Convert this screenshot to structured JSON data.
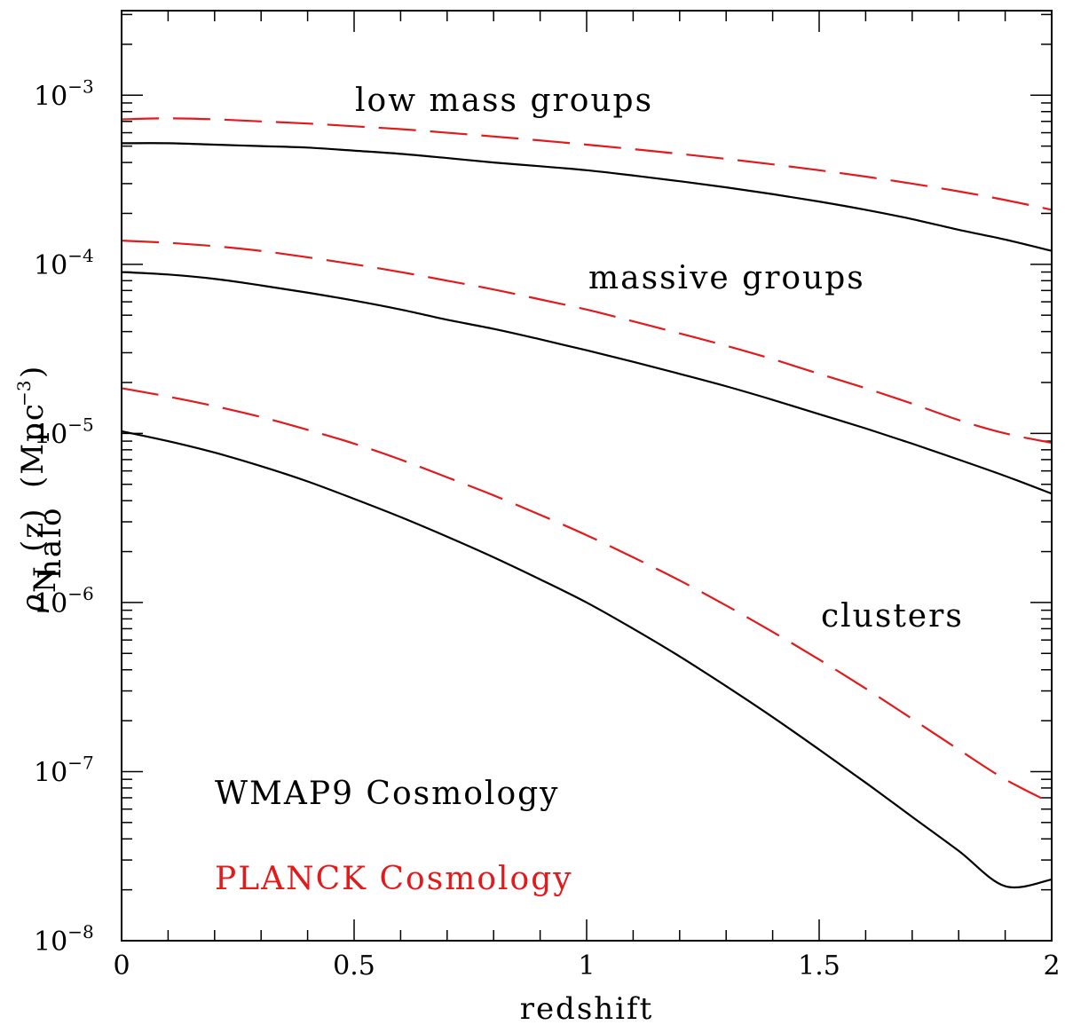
{
  "chart_data": {
    "type": "line",
    "title": "",
    "xlabel": "redshift",
    "ylabel": {
      "symbol": "ρ",
      "subscript": "N",
      "sub_subscript": "halo",
      "argument": "(z)",
      "units": "(Mpc",
      "units_exp": "−3",
      "units_close": ")"
    },
    "xlim": [
      0,
      2
    ],
    "ylim_log10": [
      -8,
      -2.5
    ],
    "y_scale": "log",
    "x_ticks": [
      {
        "value": 0,
        "label": "0"
      },
      {
        "value": 0.5,
        "label": "0.5"
      },
      {
        "value": 1,
        "label": "1"
      },
      {
        "value": 1.5,
        "label": "1.5"
      },
      {
        "value": 2,
        "label": "2"
      }
    ],
    "y_ticks": [
      {
        "exp": -8,
        "base": "10",
        "sup": "−8"
      },
      {
        "exp": -7,
        "base": "10",
        "sup": "−7"
      },
      {
        "exp": -6,
        "base": "10",
        "sup": "−6"
      },
      {
        "exp": -5,
        "base": "10",
        "sup": "−5"
      },
      {
        "exp": -4,
        "base": "10",
        "sup": "−4"
      },
      {
        "exp": -3,
        "base": "10",
        "sup": "−3"
      }
    ],
    "x": [
      0,
      0.1,
      0.2,
      0.3,
      0.4,
      0.5,
      0.6,
      0.7,
      0.8,
      0.9,
      1.0,
      1.1,
      1.2,
      1.3,
      1.4,
      1.5,
      1.6,
      1.7,
      1.8,
      1.9,
      2.0
    ],
    "series": [
      {
        "name": "WMAP9 low mass groups",
        "cosmology": "WMAP9",
        "style": "solid",
        "color": "#000000",
        "values": [
          0.00052,
          0.00052,
          0.00051,
          0.0005,
          0.00049,
          0.00047,
          0.00045,
          0.000425,
          0.0004,
          0.00038,
          0.00036,
          0.000335,
          0.00031,
          0.000285,
          0.00026,
          0.000235,
          0.00021,
          0.000185,
          0.00016,
          0.00014,
          0.00012
        ]
      },
      {
        "name": "PLANCK low mass groups",
        "cosmology": "PLANCK",
        "style": "dashed",
        "color": "#e31a1c",
        "values": [
          0.00072,
          0.00073,
          0.00072,
          0.0007,
          0.00068,
          0.000655,
          0.00063,
          0.0006,
          0.00057,
          0.00054,
          0.00051,
          0.00048,
          0.00045,
          0.00042,
          0.00039,
          0.00036,
          0.00033,
          0.0003,
          0.00027,
          0.00024,
          0.00021
        ]
      },
      {
        "name": "WMAP9 massive groups",
        "cosmology": "WMAP9",
        "style": "solid",
        "color": "#000000",
        "values": [
          9e-05,
          8.7e-05,
          8.2e-05,
          7.5e-05,
          6.8e-05,
          6.1e-05,
          5.4e-05,
          4.7e-05,
          4.15e-05,
          3.6e-05,
          3.1e-05,
          2.65e-05,
          2.25e-05,
          1.9e-05,
          1.58e-05,
          1.3e-05,
          1.07e-05,
          8.7e-06,
          7e-06,
          5.6e-06,
          4.4e-06
        ]
      },
      {
        "name": "PLANCK massive groups",
        "cosmology": "PLANCK",
        "style": "dashed",
        "color": "#e31a1c",
        "values": [
          0.000138,
          0.000134,
          0.000128,
          0.00012,
          0.00011,
          0.0001,
          9e-05,
          8e-05,
          7.1e-05,
          6.2e-05,
          5.4e-05,
          4.6e-05,
          3.9e-05,
          3.3e-05,
          2.75e-05,
          2.25e-05,
          1.85e-05,
          1.5e-05,
          1.2e-05,
          1e-05,
          8.8e-06
        ]
      },
      {
        "name": "WMAP9 clusters",
        "cosmology": "WMAP9",
        "style": "solid",
        "color": "#000000",
        "values": [
          1.03e-05,
          9e-06,
          7.7e-06,
          6.4e-06,
          5.2e-06,
          4.1e-06,
          3.2e-06,
          2.45e-06,
          1.85e-06,
          1.37e-06,
          1e-06,
          7e-07,
          4.8e-07,
          3.2e-07,
          2.1e-07,
          1.35e-07,
          8.6e-08,
          5.4e-08,
          3.4e-08,
          2.1e-08,
          2.3e-08
        ]
      },
      {
        "name": "PLANCK clusters",
        "cosmology": "PLANCK",
        "style": "dashed",
        "color": "#e31a1c",
        "values": [
          1.85e-05,
          1.65e-05,
          1.45e-05,
          1.25e-05,
          1.05e-05,
          8.7e-06,
          7e-06,
          5.5e-06,
          4.3e-06,
          3.3e-06,
          2.5e-06,
          1.85e-06,
          1.35e-06,
          9.6e-07,
          6.7e-07,
          4.6e-07,
          3.1e-07,
          2.05e-07,
          1.35e-07,
          9e-08,
          6.5e-08
        ]
      }
    ],
    "annotations": [
      {
        "id": "low",
        "text": "low mass groups",
        "color": "#000000"
      },
      {
        "id": "massive",
        "text": "massive groups",
        "color": "#000000"
      },
      {
        "id": "clusters",
        "text": "clusters",
        "color": "#000000"
      },
      {
        "id": "wmap",
        "text": "WMAP9 Cosmology",
        "color": "#000000"
      },
      {
        "id": "planck",
        "text": "PLANCK Cosmology",
        "color": "#e31a1c"
      }
    ]
  }
}
